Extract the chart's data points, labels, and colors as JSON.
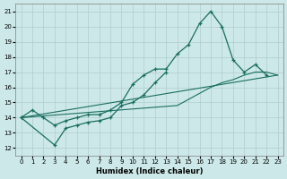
{
  "xlabel": "Humidex (Indice chaleur)",
  "xlim": [
    -0.5,
    23.5
  ],
  "ylim": [
    11.5,
    21.5
  ],
  "yticks": [
    12,
    13,
    14,
    15,
    16,
    17,
    18,
    19,
    20,
    21
  ],
  "xticks": [
    0,
    1,
    2,
    3,
    4,
    5,
    6,
    7,
    8,
    9,
    10,
    11,
    12,
    13,
    14,
    15,
    16,
    17,
    18,
    19,
    20,
    21,
    22,
    23
  ],
  "bg_color": "#cce8e8",
  "grid_color": "#b0cccc",
  "line_color": "#1a6e60",
  "line1_x": [
    0,
    1,
    2,
    3,
    4,
    5,
    6,
    7,
    8,
    9,
    10,
    11,
    12,
    13,
    14,
    15,
    16,
    17,
    18,
    19,
    20,
    21,
    22
  ],
  "line1_y": [
    14.0,
    14.5,
    14.0,
    13.5,
    13.8,
    14.0,
    14.2,
    14.2,
    14.5,
    15.0,
    16.2,
    16.8,
    17.2,
    17.2,
    18.2,
    18.8,
    20.2,
    21.0,
    20.0,
    17.8,
    17.0,
    17.5,
    16.8
  ],
  "line2_x": [
    0,
    3,
    4,
    5,
    6,
    7,
    8,
    9,
    10,
    11,
    12,
    13
  ],
  "line2_y": [
    14.0,
    12.2,
    13.3,
    13.5,
    13.7,
    13.8,
    14.0,
    14.8,
    15.0,
    15.5,
    16.3,
    17.0
  ],
  "line3_x": [
    0,
    14,
    15,
    16,
    17,
    18,
    19,
    20,
    21,
    22,
    23
  ],
  "line3_y": [
    14.0,
    14.8,
    15.2,
    15.6,
    16.0,
    16.3,
    16.5,
    16.8,
    17.0,
    17.0,
    16.8
  ]
}
